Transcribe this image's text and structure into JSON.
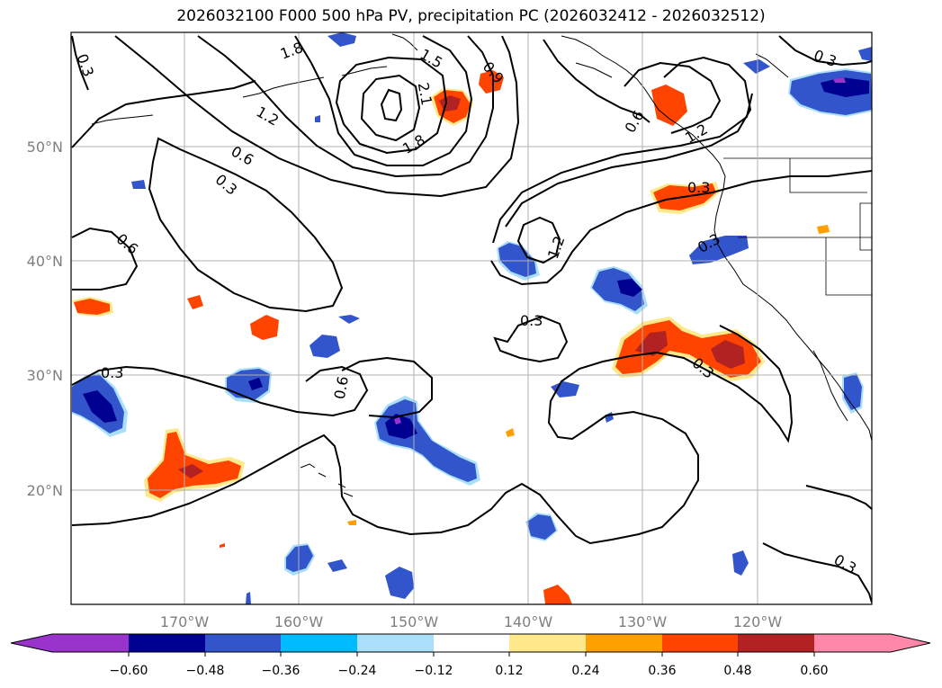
{
  "title": "2026032100 F000 500 hPa PV, precipitation PC (2026032412 - 2026032512)",
  "map": {
    "lon_ticks": [
      "170°W",
      "160°W",
      "150°W",
      "140°W",
      "130°W",
      "120°W"
    ],
    "lat_ticks": [
      "50°N",
      "40°N",
      "30°N",
      "20°N"
    ],
    "contour_labels": [
      "0.3",
      "1.8",
      "1.5",
      "0.9",
      "2.1",
      "1.2",
      "0.6",
      "1.8",
      "0.3",
      "0.6",
      "1.2",
      "0.3",
      "0.3",
      "0.6",
      "0.3",
      "0.3",
      "0.3",
      "0.3",
      "0.6",
      "1.2",
      "0.3"
    ]
  },
  "colorbar": {
    "ticks": [
      "−0.60",
      "−0.48",
      "−0.36",
      "−0.24",
      "−0.12",
      "0.12",
      "0.24",
      "0.36",
      "0.48",
      "0.60"
    ],
    "colors": [
      "#9933cc",
      "#000090",
      "#3355cc",
      "#00bbff",
      "#aadff9",
      "#ffffff",
      "#ffe98a",
      "#ff9f00",
      "#ff4400",
      "#b22222",
      "#ff88aa"
    ]
  }
}
